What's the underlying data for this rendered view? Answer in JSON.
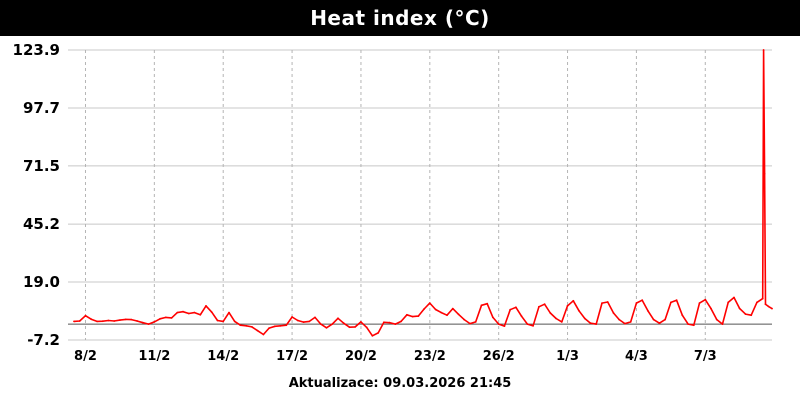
{
  "chart_data": {
    "type": "line",
    "title": "Heat index (°C)",
    "xlabel": "",
    "ylabel": "",
    "ylim": [
      -7.2,
      123.9
    ],
    "yticks": [
      "123.9",
      "97.7",
      "71.5",
      "45.2",
      "19.0",
      "-7.2"
    ],
    "xticks": [
      "8/2",
      "11/2",
      "14/2",
      "17/2",
      "20/2",
      "23/2",
      "26/2",
      "1/3",
      "4/3",
      "7/3"
    ],
    "x_range": [
      "7/2 12:00",
      "9/3 21:45"
    ],
    "grid": true,
    "series": [
      {
        "color": "#ff0000",
        "points": [
          [
            "7/2 12:00",
            1.2
          ],
          [
            "7/2 18:00",
            1.4
          ],
          [
            "8/2 00:00",
            3.8
          ],
          [
            "8/2 06:00",
            2.2
          ],
          [
            "8/2 12:00",
            1.2
          ],
          [
            "8/2 18:00",
            1.3
          ],
          [
            "9/2 00:00",
            1.6
          ],
          [
            "9/2 06:00",
            1.4
          ],
          [
            "9/2 12:00",
            1.8
          ],
          [
            "9/2 18:00",
            2.1
          ],
          [
            "10/2 00:00",
            2.0
          ],
          [
            "10/2 06:00",
            1.4
          ],
          [
            "10/2 12:00",
            0.6
          ],
          [
            "10/2 18:00",
            0.0
          ],
          [
            "11/2 00:00",
            1.0
          ],
          [
            "11/2 06:00",
            2.4
          ],
          [
            "11/2 12:00",
            3.0
          ],
          [
            "11/2 18:00",
            2.8
          ],
          [
            "12/2 00:00",
            5.2
          ],
          [
            "12/2 06:00",
            5.6
          ],
          [
            "12/2 12:00",
            4.8
          ],
          [
            "12/2 18:00",
            5.2
          ],
          [
            "13/2 00:00",
            4.2
          ],
          [
            "13/2 06:00",
            8.2
          ],
          [
            "13/2 12:00",
            5.4
          ],
          [
            "13/2 18:00",
            1.6
          ],
          [
            "14/2 00:00",
            1.2
          ],
          [
            "14/2 06:00",
            5.2
          ],
          [
            "14/2 12:00",
            1.2
          ],
          [
            "14/2 18:00",
            -0.5
          ],
          [
            "15/2 00:00",
            -0.8
          ],
          [
            "15/2 06:00",
            -1.3
          ],
          [
            "15/2 12:00",
            -3.0
          ],
          [
            "15/2 18:00",
            -4.7
          ],
          [
            "16/2 00:00",
            -1.8
          ],
          [
            "16/2 06:00",
            -1.0
          ],
          [
            "16/2 12:00",
            -0.8
          ],
          [
            "16/2 18:00",
            -0.5
          ],
          [
            "17/2 00:00",
            3.2
          ],
          [
            "17/2 06:00",
            1.6
          ],
          [
            "17/2 12:00",
            0.9
          ],
          [
            "17/2 18:00",
            1.2
          ],
          [
            "18/2 00:00",
            3.0
          ],
          [
            "18/2 06:00",
            0.0
          ],
          [
            "18/2 12:00",
            -1.7
          ],
          [
            "18/2 18:00",
            0.0
          ],
          [
            "19/2 00:00",
            2.6
          ],
          [
            "19/2 06:00",
            0.4
          ],
          [
            "19/2 12:00",
            -1.4
          ],
          [
            "19/2 18:00",
            -1.3
          ],
          [
            "20/2 00:00",
            1.0
          ],
          [
            "20/2 06:00",
            -1.5
          ],
          [
            "20/2 12:00",
            -5.3
          ],
          [
            "20/2 18:00",
            -4.0
          ],
          [
            "21/2 00:00",
            0.8
          ],
          [
            "21/2 06:00",
            0.6
          ],
          [
            "21/2 12:00",
            0.0
          ],
          [
            "21/2 18:00",
            1.2
          ],
          [
            "22/2 00:00",
            4.2
          ],
          [
            "22/2 06:00",
            3.4
          ],
          [
            "22/2 12:00",
            3.6
          ],
          [
            "22/2 18:00",
            6.8
          ],
          [
            "23/2 00:00",
            9.5
          ],
          [
            "23/2 06:00",
            6.6
          ],
          [
            "23/2 12:00",
            5.2
          ],
          [
            "23/2 18:00",
            4.0
          ],
          [
            "24/2 00:00",
            7.0
          ],
          [
            "24/2 06:00",
            4.4
          ],
          [
            "24/2 12:00",
            2.0
          ],
          [
            "24/2 18:00",
            0.2
          ],
          [
            "25/2 00:00",
            1.0
          ],
          [
            "25/2 06:00",
            8.5
          ],
          [
            "25/2 12:00",
            9.2
          ],
          [
            "25/2 18:00",
            3.0
          ],
          [
            "26/2 00:00",
            0.0
          ],
          [
            "26/2 06:00",
            -0.9
          ],
          [
            "26/2 12:00",
            6.5
          ],
          [
            "26/2 18:00",
            7.6
          ],
          [
            "27/2 00:00",
            3.5
          ],
          [
            "27/2 06:00",
            0.0
          ],
          [
            "27/2 12:00",
            -0.8
          ],
          [
            "27/2 18:00",
            7.8
          ],
          [
            "28/2 00:00",
            9.0
          ],
          [
            "28/2 06:00",
            5.0
          ],
          [
            "28/2 12:00",
            2.5
          ],
          [
            "28/2 18:00",
            1.0
          ],
          [
            "1/3 00:00",
            8.2
          ],
          [
            "1/3 06:00",
            10.5
          ],
          [
            "1/3 12:00",
            6.0
          ],
          [
            "1/3 18:00",
            2.5
          ],
          [
            "2/3 00:00",
            0.4
          ],
          [
            "2/3 06:00",
            0.0
          ],
          [
            "2/3 12:00",
            9.5
          ],
          [
            "2/3 18:00",
            10.0
          ],
          [
            "3/3 00:00",
            5.0
          ],
          [
            "3/3 06:00",
            2.0
          ],
          [
            "3/3 12:00",
            0.2
          ],
          [
            "3/3 18:00",
            1.0
          ],
          [
            "4/3 00:00",
            9.5
          ],
          [
            "4/3 06:00",
            10.8
          ],
          [
            "4/3 12:00",
            6.0
          ],
          [
            "4/3 18:00",
            2.0
          ],
          [
            "5/3 00:00",
            0.4
          ],
          [
            "5/3 06:00",
            2.0
          ],
          [
            "5/3 12:00",
            9.8
          ],
          [
            "5/3 18:00",
            10.8
          ],
          [
            "6/3 00:00",
            4.0
          ],
          [
            "6/3 06:00",
            0.0
          ],
          [
            "6/3 12:00",
            -0.5
          ],
          [
            "6/3 18:00",
            9.5
          ],
          [
            "7/3 00:00",
            11.0
          ],
          [
            "7/3 06:00",
            7.0
          ],
          [
            "7/3 12:00",
            2.0
          ],
          [
            "7/3 18:00",
            0.0
          ],
          [
            "8/3 00:00",
            9.8
          ],
          [
            "8/3 06:00",
            12.0
          ],
          [
            "8/3 12:00",
            7.0
          ],
          [
            "8/3 18:00",
            4.5
          ],
          [
            "9/3 00:00",
            4.0
          ],
          [
            "9/3 06:00",
            9.8
          ],
          [
            "9/3 12:00",
            11.5
          ],
          [
            "9/3 13:00",
            123.9
          ],
          [
            "9/3 14:00",
            68.0
          ],
          [
            "9/3 15:00",
            9.0
          ],
          [
            "9/3 18:00",
            8.0
          ],
          [
            "9/3 21:45",
            7.0
          ]
        ]
      }
    ]
  },
  "footer": "Aktualizace: 09.03.2026 21:45"
}
